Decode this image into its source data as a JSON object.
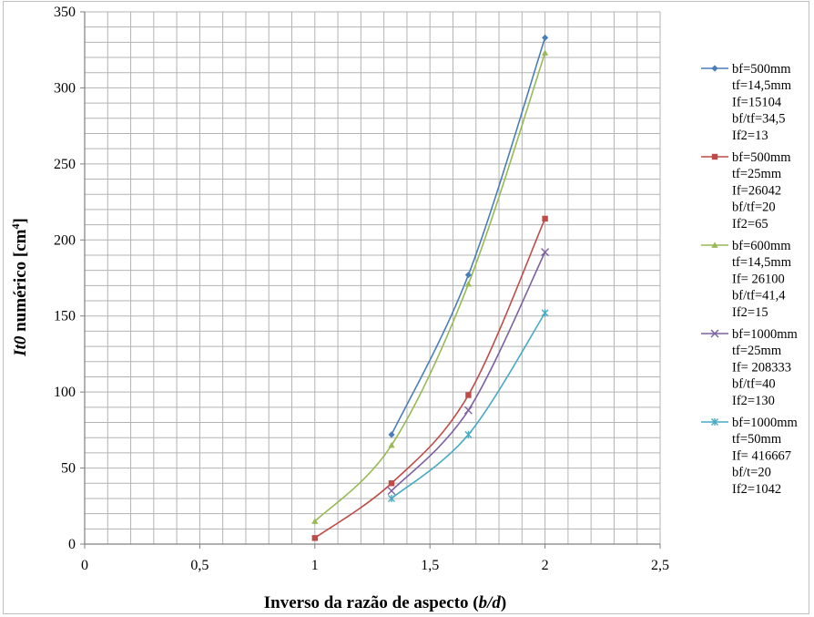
{
  "chart_data": {
    "type": "line",
    "title": "",
    "xlabel": {
      "pre": "Inverso da razão de aspecto (",
      "var": "b/d",
      "post": ")"
    },
    "ylabel": {
      "var": "It0",
      "mid": " numérico [cm",
      "sup": "4",
      "post": "]"
    },
    "xlim": [
      0,
      2.5
    ],
    "ylim": [
      0,
      350
    ],
    "x_ticks": [
      "0",
      "0,5",
      "1",
      "1,5",
      "2",
      "2,5"
    ],
    "y_ticks": [
      "0",
      "50",
      "100",
      "150",
      "200",
      "250",
      "300",
      "350"
    ],
    "grid": true,
    "legend_position": "right",
    "series": [
      {
        "name": "bf=500mm",
        "legend_lines": [
          "bf=500mm",
          "tf=14,5mm",
          "If=15104",
          "bf/tf=34,5",
          "If2=13"
        ],
        "color": "#4a7ebb",
        "marker": "diamond",
        "x": [
          1.333,
          1.667,
          2.0
        ],
        "y": [
          72,
          177,
          333
        ]
      },
      {
        "name": "bf=500mm",
        "legend_lines": [
          "bf=500mm",
          "tf=25mm",
          "If=26042",
          "bf/tf=20",
          "If2=65"
        ],
        "color": "#be4b48",
        "marker": "square",
        "x": [
          1.0,
          1.333,
          1.667,
          2.0
        ],
        "y": [
          4,
          40,
          98,
          214
        ]
      },
      {
        "name": "bf=600mm",
        "legend_lines": [
          "bf=600mm",
          "tf=14,5mm",
          "If= 26100",
          "bf/tf=41,4",
          "If2=15"
        ],
        "color": "#98b954",
        "marker": "triangle",
        "x": [
          1.0,
          1.333,
          1.667,
          2.0
        ],
        "y": [
          15,
          65,
          171,
          323
        ]
      },
      {
        "name": "bf=1000mm",
        "legend_lines": [
          "bf=1000mm",
          "tf=25mm",
          "If= 208333",
          "bf/tf=40",
          "If2=130"
        ],
        "color": "#7d60a0",
        "marker": "x",
        "x": [
          1.333,
          1.667,
          2.0
        ],
        "y": [
          35,
          88,
          192
        ]
      },
      {
        "name": "bf=1000mm",
        "legend_lines": [
          "bf=1000mm",
          "tf=50mm",
          "If= 416667",
          "bf/t=20",
          "If2=1042"
        ],
        "color": "#46aac5",
        "marker": "star",
        "x": [
          1.333,
          1.667,
          2.0
        ],
        "y": [
          30,
          72,
          152
        ]
      }
    ]
  }
}
